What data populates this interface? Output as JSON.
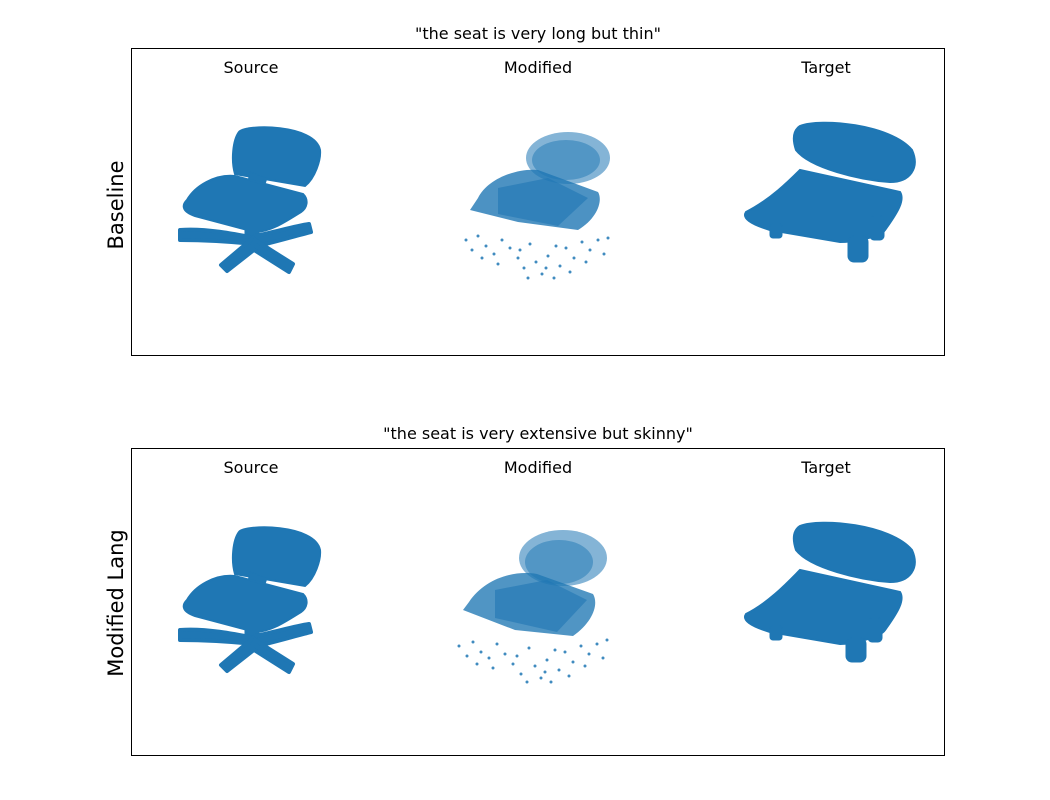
{
  "colors": {
    "points": "#1f77b4",
    "frame": "#000000",
    "background": "#ffffff"
  },
  "panels": [
    {
      "title": "\"the seat is very long but thin\"",
      "row_label": "Baseline",
      "columns": [
        "Source",
        "Modified",
        "Target"
      ]
    },
    {
      "title": "\"the seat is very extensive but skinny\"",
      "row_label": "Modified Lang",
      "columns": [
        "Source",
        "Modified",
        "Target"
      ]
    }
  ],
  "icons": {
    "source": "swivel-office-chair-point-cloud",
    "modified": "noisy-chair-point-cloud",
    "target": "wide-seat-chair-point-cloud"
  }
}
